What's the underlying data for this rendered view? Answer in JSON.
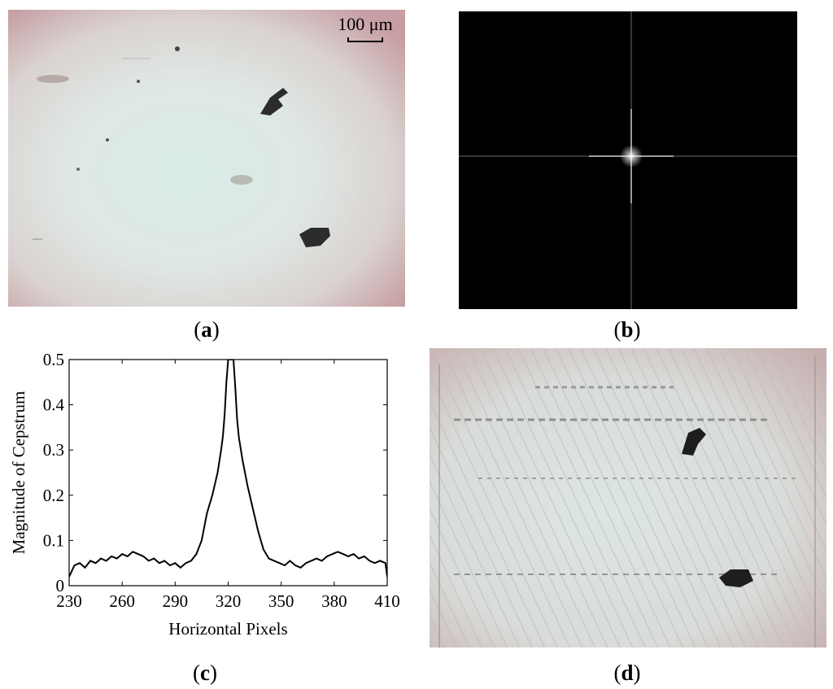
{
  "panels": {
    "a": {
      "label": "a",
      "scale_bar": "100 μm"
    },
    "b": {
      "label": "b"
    },
    "c": {
      "label": "c"
    },
    "d": {
      "label": "d"
    }
  },
  "chart_data": {
    "type": "line",
    "xlabel": "Horizontal Pixels",
    "ylabel": "Magnitude of Cepstrum",
    "xlim": [
      230,
      410
    ],
    "ylim": [
      0,
      0.5
    ],
    "x_ticks": [
      230,
      260,
      290,
      320,
      350,
      380,
      410
    ],
    "y_ticks": [
      0,
      0.1,
      0.2,
      0.3,
      0.4,
      0.5
    ],
    "y_tick_labels": [
      "0",
      "0.1",
      "0.2",
      "0.3",
      "0.4",
      "0.5"
    ],
    "grid": false,
    "series": [
      {
        "x": [
          230,
          233,
          236,
          239,
          242,
          245,
          248,
          251,
          254,
          257,
          260,
          263,
          266,
          269,
          272,
          275,
          278,
          281,
          284,
          287,
          290,
          293,
          296,
          299,
          302,
          305,
          308,
          311,
          314,
          316,
          317,
          318,
          319,
          320,
          321,
          322,
          323,
          324,
          325,
          326,
          328,
          331,
          334,
          337,
          340,
          343,
          346,
          349,
          352,
          355,
          358,
          361,
          364,
          367,
          370,
          373,
          376,
          379,
          382,
          385,
          388,
          391,
          394,
          397,
          400,
          403,
          406,
          409,
          410
        ],
        "y": [
          0.02,
          0.045,
          0.05,
          0.04,
          0.055,
          0.05,
          0.06,
          0.055,
          0.065,
          0.06,
          0.07,
          0.065,
          0.075,
          0.07,
          0.065,
          0.055,
          0.06,
          0.05,
          0.055,
          0.045,
          0.05,
          0.04,
          0.05,
          0.055,
          0.07,
          0.1,
          0.16,
          0.2,
          0.25,
          0.3,
          0.33,
          0.38,
          0.45,
          0.5,
          0.5,
          0.5,
          0.5,
          0.44,
          0.37,
          0.33,
          0.28,
          0.22,
          0.17,
          0.12,
          0.08,
          0.06,
          0.055,
          0.05,
          0.045,
          0.055,
          0.045,
          0.04,
          0.05,
          0.055,
          0.06,
          0.055,
          0.065,
          0.07,
          0.075,
          0.07,
          0.065,
          0.07,
          0.06,
          0.065,
          0.055,
          0.05,
          0.055,
          0.05,
          0.02
        ]
      }
    ]
  }
}
